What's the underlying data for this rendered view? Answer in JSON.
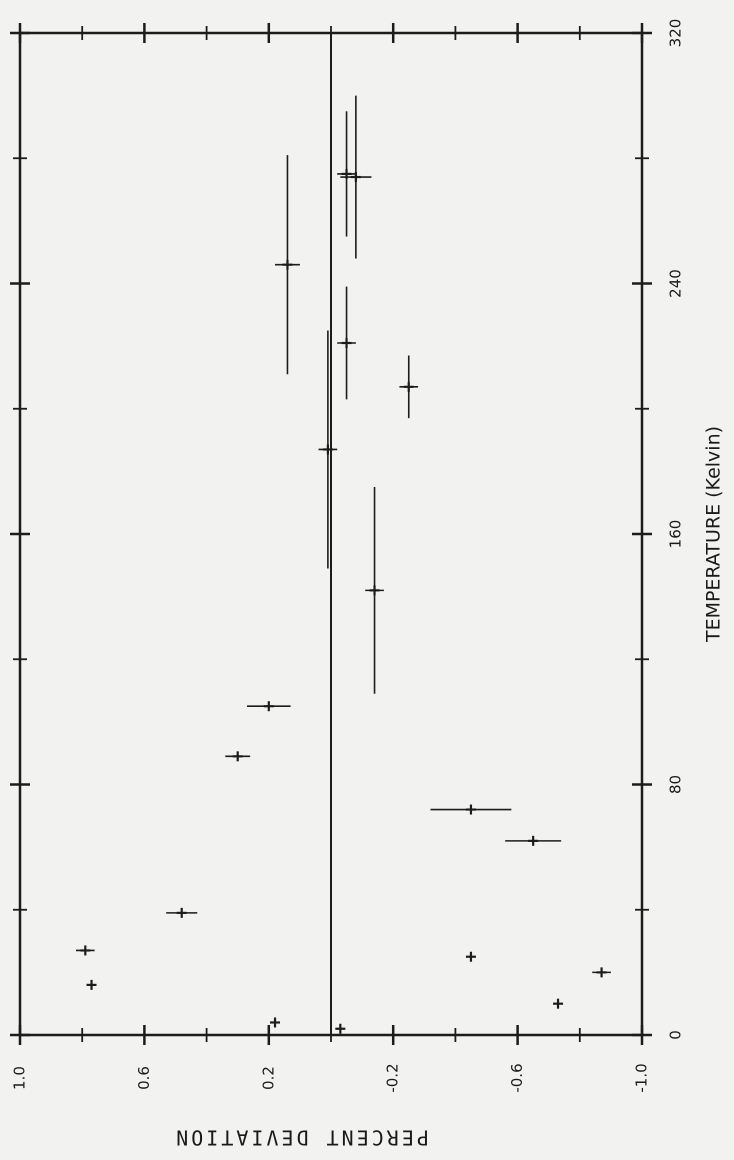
{
  "chart_data": {
    "type": "scatter",
    "orientation": "rotated-90",
    "xlabel": "TEMPERATURE (Kelvin)",
    "ylabel": "PERCENT DEVIATION",
    "xlim": [
      0,
      320
    ],
    "ylim": [
      -1.0,
      1.0
    ],
    "x_ticks": [
      0,
      80,
      160,
      240,
      320
    ],
    "y_ticks": [
      "1.0",
      "0.6",
      "0.2",
      "-0.2",
      "-0.6",
      "-1.0"
    ],
    "y_tick_values": [
      1.0,
      0.6,
      0.2,
      -0.2,
      -0.6,
      -1.0
    ],
    "grid": false,
    "zero_line": true,
    "points": [
      {
        "x": 2,
        "y": -0.03,
        "err": 0
      },
      {
        "x": 4,
        "y": 0.18,
        "err": 0
      },
      {
        "x": 10,
        "y": -0.73,
        "err": 0
      },
      {
        "x": 16,
        "y": 0.77,
        "err": 0
      },
      {
        "x": 20,
        "y": -0.87,
        "err": 0.03
      },
      {
        "x": 25,
        "y": -0.45,
        "err": 0
      },
      {
        "x": 27,
        "y": 0.79,
        "err": 0.03
      },
      {
        "x": 39,
        "y": 0.48,
        "err": 0.05
      },
      {
        "x": 62,
        "y": -0.65,
        "err": 0.09
      },
      {
        "x": 72,
        "y": -0.45,
        "err": 0.13
      },
      {
        "x": 89,
        "y": 0.3,
        "err": 0.04
      },
      {
        "x": 105,
        "y": 0.2,
        "err": 0.07
      },
      {
        "x": 142,
        "y": -0.14,
        "err": 0.03
      },
      {
        "x": 187,
        "y": 0.01,
        "err": 0.03
      },
      {
        "x": 207,
        "y": -0.25,
        "err": 0.03
      },
      {
        "x": 221,
        "y": -0.05,
        "err": 0.03
      },
      {
        "x": 246,
        "y": 0.14,
        "err": 0.04
      },
      {
        "x": 275,
        "y": -0.05,
        "err": 0.03
      },
      {
        "x": 274,
        "y": -0.08,
        "err": 0.05
      }
    ],
    "point_v_err": [
      0,
      0,
      0,
      0,
      0,
      0,
      0,
      0,
      0,
      0,
      0,
      0,
      33,
      38,
      10,
      18,
      35,
      20,
      26
    ]
  }
}
